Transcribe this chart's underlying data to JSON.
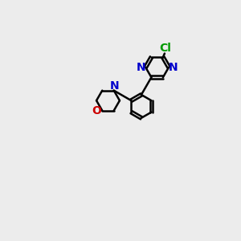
{
  "bg_color": "#ececec",
  "bond_color": "#000000",
  "N_color": "#0000cc",
  "O_color": "#cc0000",
  "Cl_color": "#009900",
  "line_width": 1.8,
  "font_size": 10,
  "figsize": [
    3.0,
    3.0
  ],
  "dpi": 100,
  "xlim": [
    0,
    10
  ],
  "ylim": [
    0,
    10
  ]
}
